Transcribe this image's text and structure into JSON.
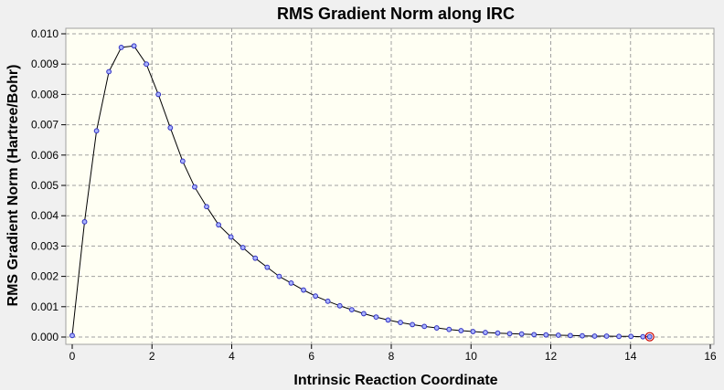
{
  "chart_data": {
    "type": "line",
    "title": "RMS Gradient Norm along IRC",
    "xlabel": "Intrinsic Reaction Coordinate",
    "ylabel": "RMS Gradient Norm (Hartree/Bohr)",
    "xlim": [
      0,
      16
    ],
    "ylim": [
      0,
      0.01
    ],
    "x_ticks": [
      "0",
      "2",
      "4",
      "6",
      "8",
      "10",
      "12",
      "14",
      "16"
    ],
    "y_ticks": [
      "0.000",
      "0.001",
      "0.002",
      "0.003",
      "0.004",
      "0.005",
      "0.006",
      "0.007",
      "0.008",
      "0.009",
      "0.010"
    ],
    "grid": true,
    "legend": "none",
    "colors": {
      "plot_background": "#fffff3",
      "line": "#000000",
      "marker_fill": "#aab4ff",
      "marker_edge": "#3030c0",
      "highlight": "#c80000",
      "grid": "#a0a0a0"
    },
    "series": [
      {
        "x": [
          0.0,
          0.31,
          0.61,
          0.92,
          1.23,
          1.55,
          1.86,
          2.16,
          2.46,
          2.77,
          3.07,
          3.37,
          3.67,
          3.98,
          4.28,
          4.59,
          4.89,
          5.19,
          5.49,
          5.8,
          6.1,
          6.41,
          6.71,
          7.01,
          7.31,
          7.62,
          7.92,
          8.23,
          8.53,
          8.83,
          9.14,
          9.45,
          9.75,
          10.05,
          10.36,
          10.67,
          10.97,
          11.27,
          11.58,
          11.88,
          12.19,
          12.49,
          12.79,
          13.1,
          13.4,
          13.71,
          14.01,
          14.31,
          14.48
        ],
        "y": [
          5e-05,
          0.0038,
          0.0068,
          0.00875,
          0.00955,
          0.0096,
          0.009,
          0.008,
          0.0069,
          0.0058,
          0.00495,
          0.0043,
          0.0037,
          0.0033,
          0.00295,
          0.0026,
          0.0023,
          0.002,
          0.00178,
          0.00155,
          0.00135,
          0.00118,
          0.00103,
          0.0009,
          0.00077,
          0.00066,
          0.00056,
          0.00048,
          0.00041,
          0.00035,
          0.0003,
          0.00025,
          0.00021,
          0.00018,
          0.00015,
          0.00013,
          0.00011,
          0.0001,
          8e-05,
          7e-05,
          6e-05,
          5e-05,
          4e-05,
          3e-05,
          3e-05,
          2e-05,
          2e-05,
          1e-05,
          1e-05
        ],
        "highlighted_point_index": 48
      }
    ]
  }
}
